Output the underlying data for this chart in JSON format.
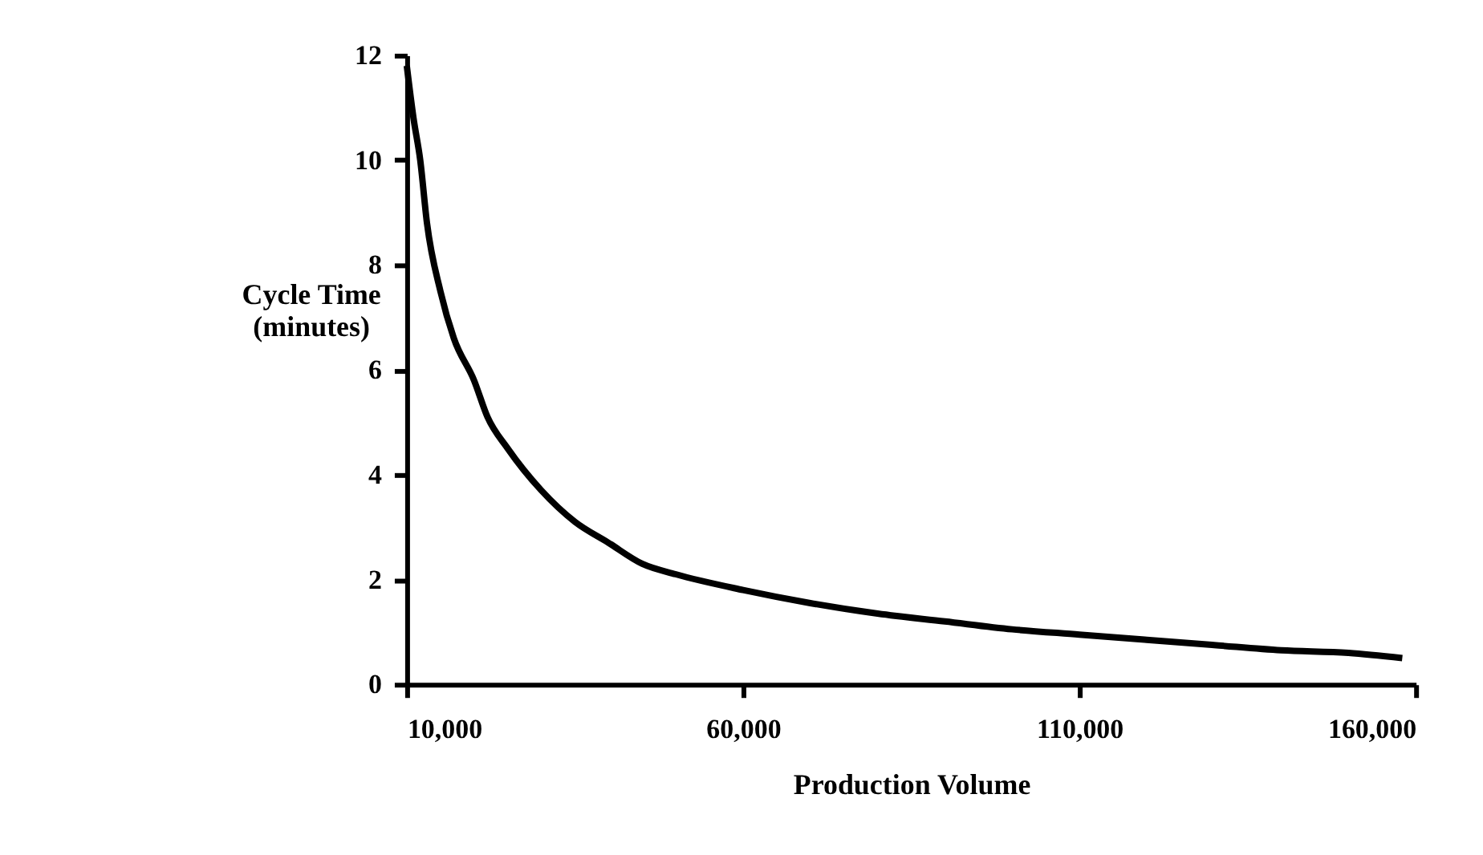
{
  "chart_data": {
    "type": "line",
    "xlabel": "Production Volume",
    "ylabel": "Cycle Time (minutes)",
    "x": [
      10000,
      11000,
      12000,
      13000,
      15000,
      17000,
      20000,
      22000,
      25000,
      30000,
      35000,
      40000,
      45000,
      50000,
      60000,
      70000,
      80000,
      90000,
      100000,
      110000,
      120000,
      130000,
      140000,
      150000,
      158000
    ],
    "series": [
      {
        "color": "#000000",
        "values": [
          11.8,
          10.8,
          10,
          8.8,
          7.5,
          6.6,
          5.8,
          5.1,
          4.5,
          3.7,
          3.1,
          2.7,
          2.3,
          2.1,
          1.8,
          1.55,
          1.35,
          1.2,
          1.05,
          0.95,
          0.85,
          0.75,
          0.65,
          0.6,
          0.5
        ]
      }
    ],
    "xlim": [
      10000,
      160000
    ],
    "ylim": [
      0,
      12
    ],
    "xticks": [
      {
        "value": 10000,
        "label": "10,000"
      },
      {
        "value": 60000,
        "label": "60,000"
      },
      {
        "value": 110000,
        "label": "110,000"
      },
      {
        "value": 160000,
        "label": "160,000"
      }
    ],
    "yticks": [
      0,
      2,
      4,
      6,
      8,
      10,
      12
    ],
    "grid": false,
    "marker": "none",
    "line_style": "solid"
  }
}
